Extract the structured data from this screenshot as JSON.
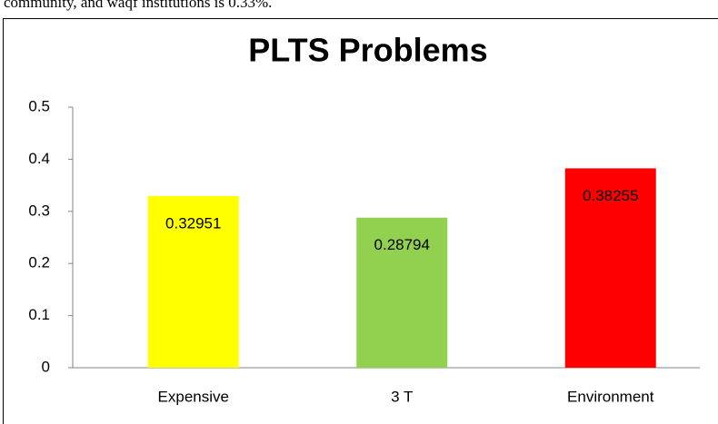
{
  "page_text": "community, and waqf institutions is 0.33%.",
  "chart_data": {
    "type": "bar",
    "title": "PLTS Problems",
    "categories": [
      "Expensive",
      "3 T",
      "Environment"
    ],
    "values": [
      0.32951,
      0.28794,
      0.38255
    ],
    "colors": [
      "#ffff00",
      "#92d050",
      "#ff0000"
    ],
    "ylim": [
      0,
      0.5
    ],
    "yticks": [
      0,
      0.1,
      0.2,
      0.3,
      0.4,
      0.5
    ],
    "grid": false
  }
}
